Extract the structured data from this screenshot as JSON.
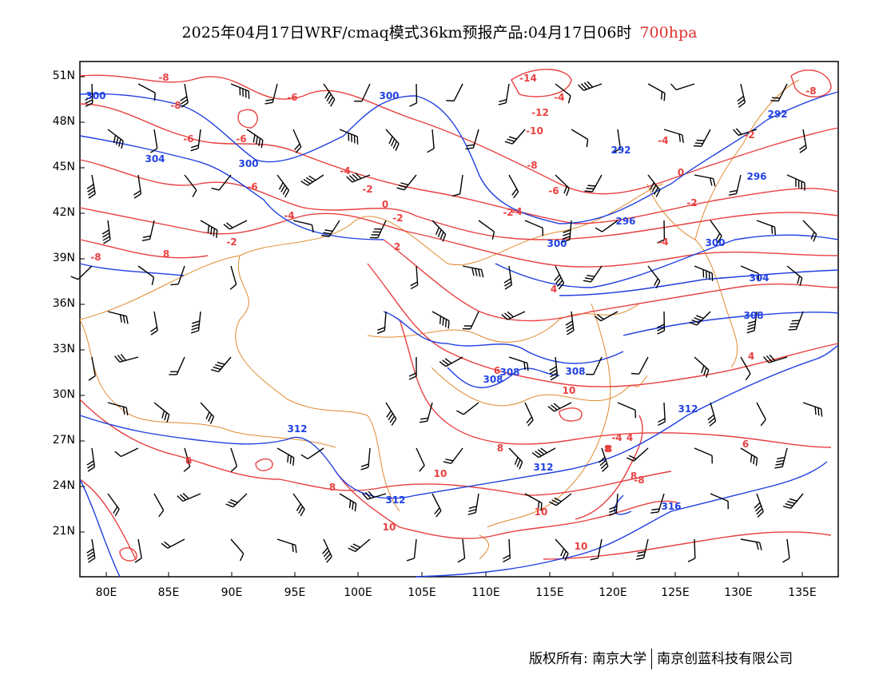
{
  "title": {
    "prefix": "2025年04月17日WRF/cmaq模式36km预报产品:04月17日06时",
    "level": "700hpa"
  },
  "colors": {
    "temperature": "#e84040",
    "height": "#2040e0",
    "wind": "#000000",
    "border": "#e08a30",
    "level": "#e03030"
  },
  "lat_labels": [
    "51N",
    "48N",
    "45N",
    "42N",
    "39N",
    "36N",
    "33N",
    "30N",
    "27N",
    "24N",
    "21N"
  ],
  "lon_labels": [
    "80E",
    "85E",
    "90E",
    "95E",
    "100E",
    "105E",
    "110E",
    "115E",
    "120E",
    "125E",
    "130E",
    "135E"
  ],
  "height_labels": [
    "300",
    "300",
    "304",
    "300",
    "292",
    "296",
    "296",
    "300",
    "304",
    "308",
    "308",
    "308",
    "312",
    "312",
    "312",
    "316",
    "292",
    "300",
    "308",
    "312"
  ],
  "temp_labels": [
    "-8",
    "-8",
    "-8",
    "-6",
    "-6",
    "-4",
    "-2",
    "-6",
    "-6",
    "-4",
    "-2",
    "0",
    "-2",
    "-4",
    "-12",
    "-10",
    "-14",
    "-8",
    "-6",
    "-4",
    "-2",
    "0",
    "-2",
    "-8",
    "-2",
    "-4",
    "-4",
    "2",
    "4",
    "6",
    "8",
    "10",
    "10",
    "8",
    "6",
    "8",
    "10",
    "10",
    "8",
    "6",
    "4",
    "4",
    "-4",
    "8",
    "-8",
    "8",
    "10"
  ],
  "copyright": {
    "left": "版权所有: 南京大学",
    "right": "南京创蓝科技有限公司"
  }
}
